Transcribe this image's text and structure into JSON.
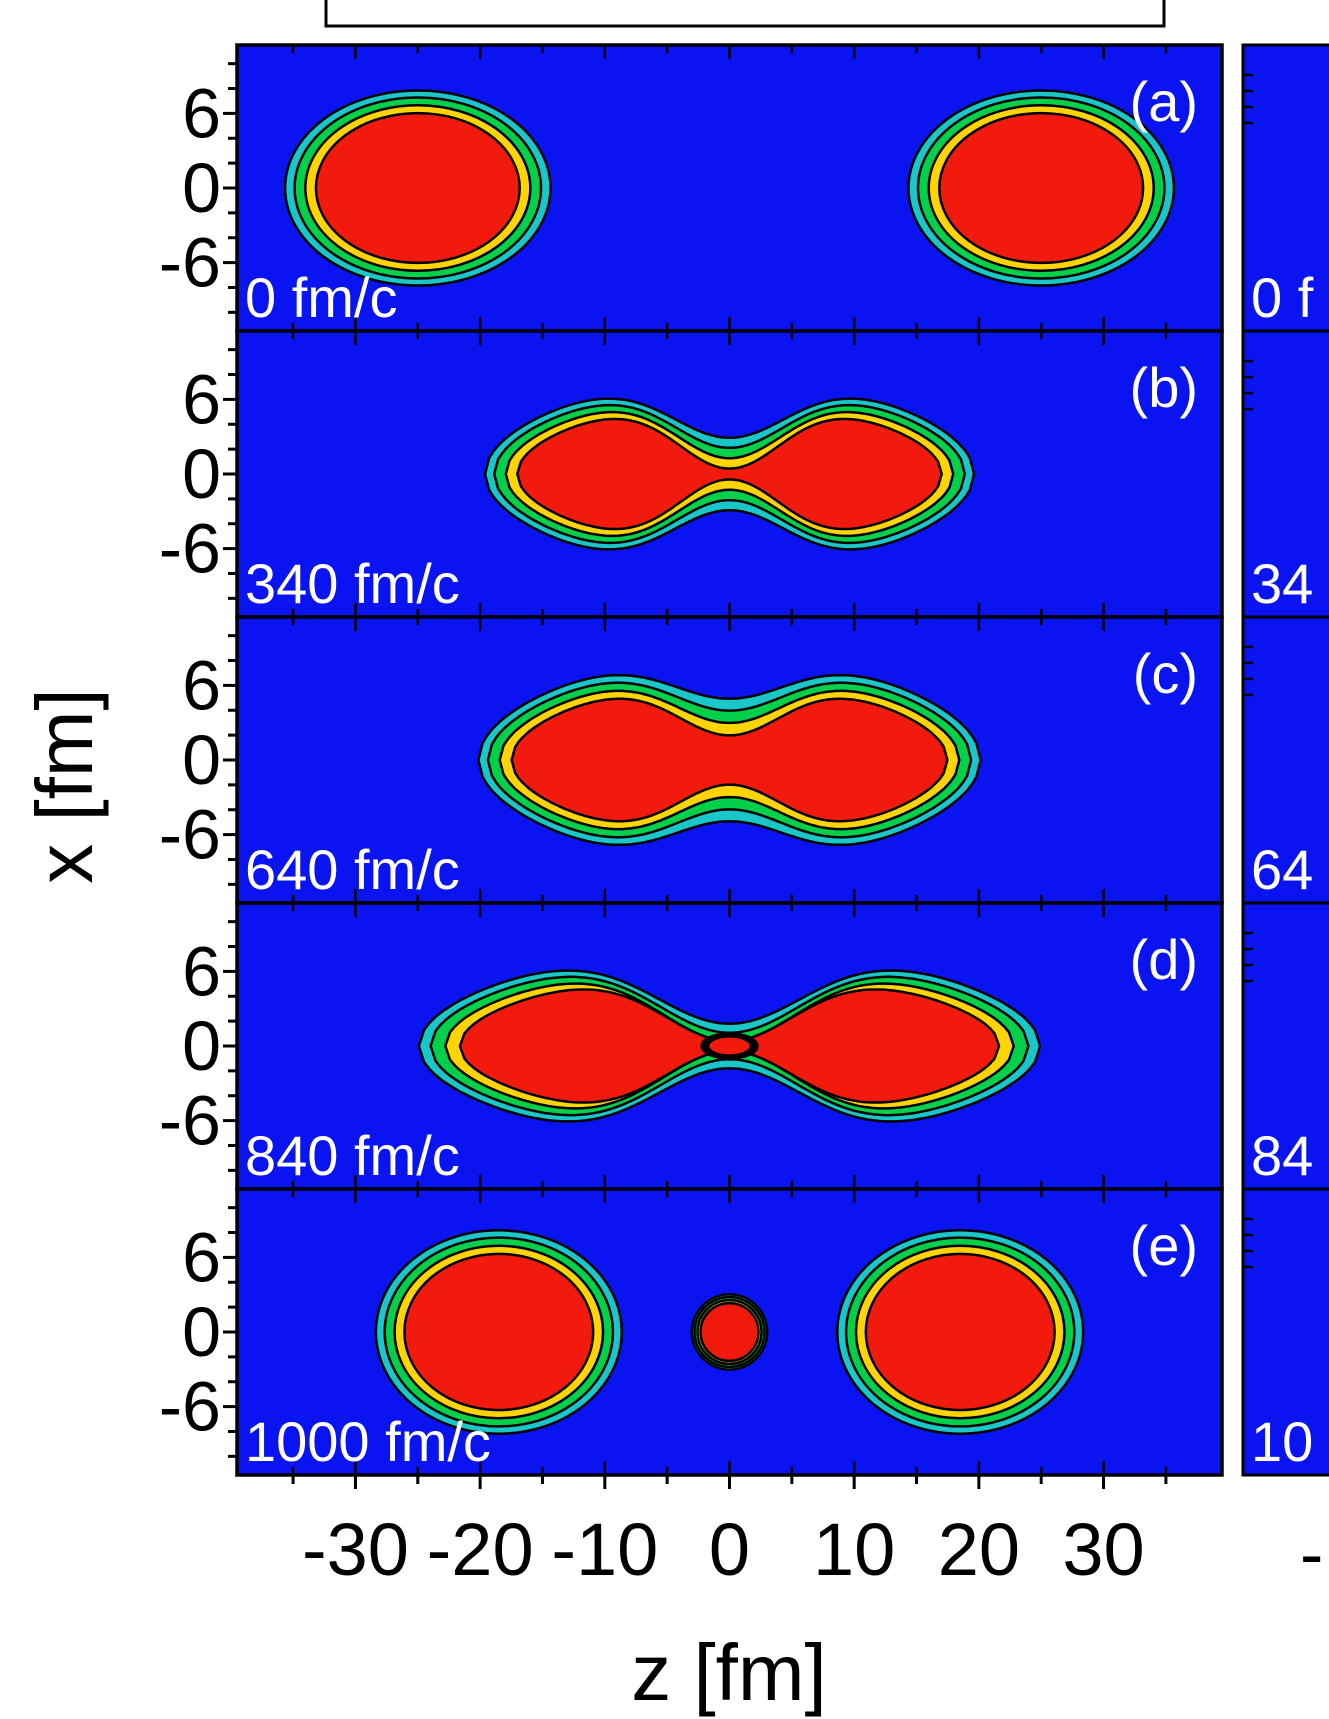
{
  "chart_data": {
    "type": "heatmap",
    "description_kind": "density contour snapshots",
    "xlabel": "z [fm]",
    "ylabel": "x [fm]",
    "xticks": [
      -30,
      -20,
      -10,
      0,
      10,
      20,
      30
    ],
    "xtick_labels": [
      "-30",
      "-20",
      "-10",
      "0",
      "10",
      "20",
      "30"
    ],
    "yticks": [
      6,
      0,
      -6
    ],
    "ytick_labels": [
      "6",
      "0",
      "-6"
    ],
    "xlim": [
      -39.5,
      39.5
    ],
    "ylim": [
      -11.5,
      11.5
    ],
    "colors": {
      "background": "#0a14f0",
      "core": "#f21a0c",
      "inner": "#ff7a00",
      "mid": "#ffd400",
      "edge": "#00d04a",
      "halo": "#19c6c8",
      "contour": "#000000"
    },
    "panels": [
      {
        "label": "(a)",
        "time": "0 fm/c",
        "blobs": [
          {
            "shape": "ellipse",
            "cz": -25,
            "cx": 0,
            "rz": 9.5,
            "rx": 7
          },
          {
            "shape": "ellipse",
            "cz": 25,
            "cx": 0,
            "rz": 9.5,
            "rx": 7
          }
        ]
      },
      {
        "label": "(b)",
        "time": "340 fm/c",
        "blobs": [
          {
            "shape": "neck",
            "z_left": -18.5,
            "z_right": 18.5,
            "half_width": 7,
            "neck_half_width": 2.6
          }
        ]
      },
      {
        "label": "(c)",
        "time": "640 fm/c",
        "blobs": [
          {
            "shape": "neck",
            "z_left": -19,
            "z_right": 19,
            "half_width": 7.5,
            "neck_half_width": 4.4
          }
        ]
      },
      {
        "label": "(d)",
        "time": "840 fm/c",
        "blobs": [
          {
            "shape": "neck",
            "z_left": -23.5,
            "z_right": 23.5,
            "half_width": 7.2,
            "neck_half_width": 1.6
          },
          {
            "shape": "ellipse",
            "cz": 0,
            "cx": 0,
            "rz": 2.0,
            "rx": 0.9
          }
        ]
      },
      {
        "label": "(e)",
        "time": "1000 fm/c",
        "blobs": [
          {
            "shape": "ellipse",
            "cz": -18.5,
            "cx": 0,
            "rz": 8.8,
            "rx": 7.3
          },
          {
            "shape": "ellipse",
            "cz": 18.5,
            "cx": 0,
            "rz": 8.8,
            "rx": 7.3
          },
          {
            "shape": "ellipse",
            "cz": 0,
            "cx": 0,
            "rz": 2.7,
            "rx": 2.7
          }
        ]
      }
    ],
    "second_column_time_labels": [
      "0 f",
      "34",
      "64",
      "84",
      "10"
    ],
    "second_column_xtick_fragment": "-"
  }
}
